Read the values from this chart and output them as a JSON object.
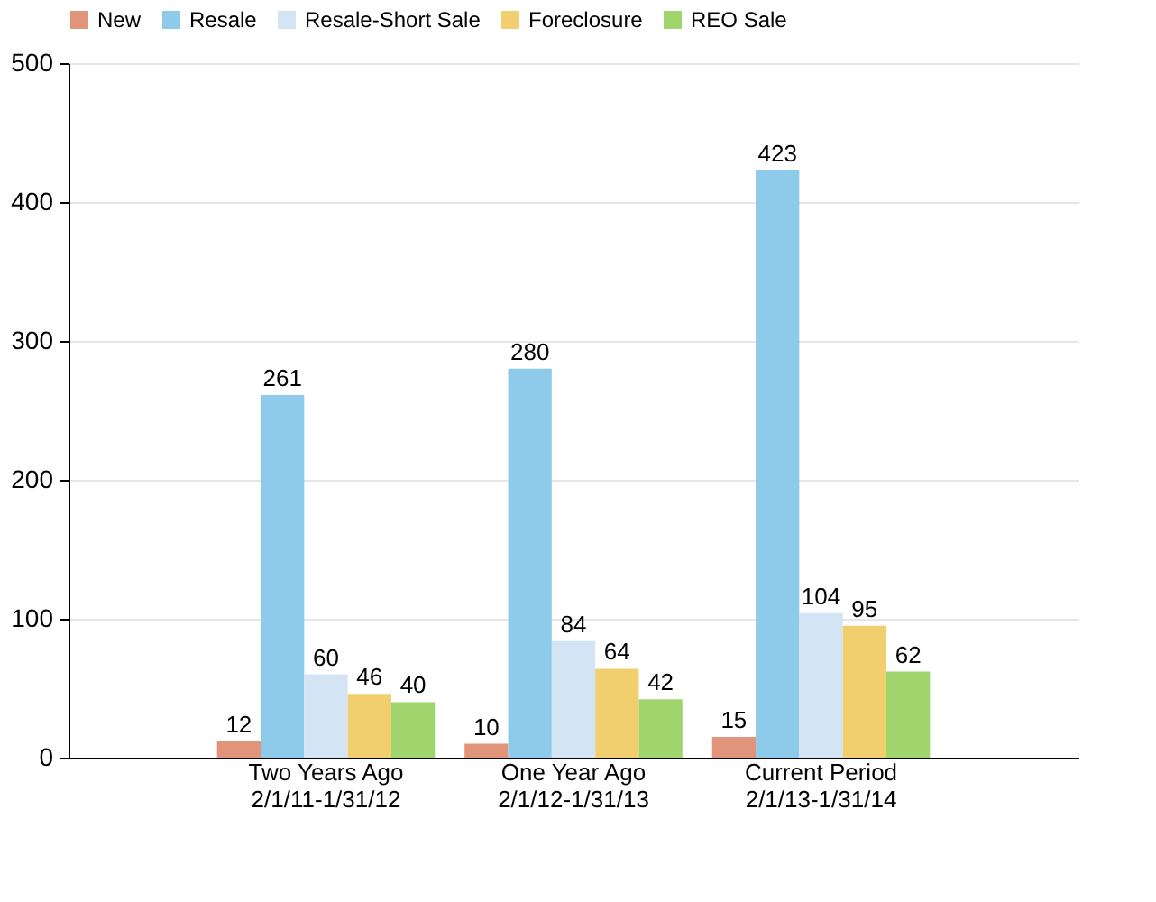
{
  "chart_data": {
    "type": "bar",
    "categories": [
      "Two Years Ago\n2/1/11-1/31/12",
      "One Year Ago\n2/1/12-1/31/13",
      "Current Period\n2/1/13-1/31/14"
    ],
    "series": [
      {
        "name": "New",
        "color": "#e0957b",
        "values": [
          12,
          10,
          15
        ]
      },
      {
        "name": "Resale",
        "color": "#8ecbea",
        "values": [
          261,
          280,
          423
        ]
      },
      {
        "name": "Resale-Short Sale",
        "color": "#d3e4f5",
        "values": [
          60,
          84,
          104
        ]
      },
      {
        "name": "Foreclosure",
        "color": "#f2cf6e",
        "values": [
          46,
          64,
          95
        ]
      },
      {
        "name": "REO Sale",
        "color": "#a0d46c",
        "values": [
          40,
          42,
          62
        ]
      }
    ],
    "ylim": [
      0,
      500
    ],
    "yticks": [
      0,
      100,
      200,
      300,
      400,
      500
    ],
    "grid": "y",
    "legend": "top",
    "data_labels": true
  }
}
